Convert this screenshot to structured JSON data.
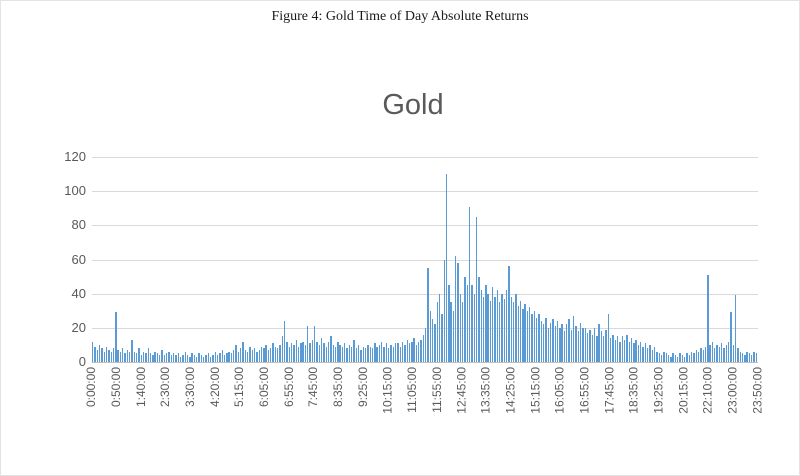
{
  "figure_caption": "Figure 4: Gold Time of Day Absolute Returns",
  "chart_data": {
    "type": "bar",
    "title": "Gold",
    "xlabel": "",
    "ylabel": "",
    "ylim": [
      0,
      120
    ],
    "y_ticks": [
      0,
      20,
      40,
      60,
      80,
      100,
      120
    ],
    "grid": true,
    "legend": false,
    "bar_color": "#5b9bd5",
    "gridline_color": "#d9d9d9",
    "axis_text_color": "#595959",
    "title_color": "#595959",
    "interval_minutes": 5,
    "x_tick_labels": [
      "0:00:00",
      "0:50:00",
      "1:40:00",
      "2:30:00",
      "3:30:00",
      "4:20:00",
      "5:15:00",
      "6:05:00",
      "6:55:00",
      "7:45:00",
      "8:35:00",
      "9:25:00",
      "10:15:00",
      "11:05:00",
      "11:55:00",
      "12:45:00",
      "13:35:00",
      "14:25:00",
      "15:15:00",
      "16:05:00",
      "16:55:00",
      "17:45:00",
      "18:35:00",
      "19:25:00",
      "20:15:00",
      "22:10:00",
      "23:00:00",
      "23:50:00"
    ],
    "values": [
      12,
      9,
      7,
      10,
      8,
      6,
      9,
      7,
      6,
      8,
      29,
      7,
      6,
      8,
      5,
      7,
      6,
      13,
      6,
      5,
      8,
      4,
      6,
      5,
      8,
      5,
      4,
      6,
      5,
      4,
      7,
      4,
      5,
      6,
      4,
      5,
      4,
      5,
      3,
      4,
      6,
      4,
      3,
      5,
      4,
      3,
      5,
      4,
      3,
      4,
      5,
      3,
      4,
      6,
      4,
      5,
      7,
      4,
      5,
      6,
      5,
      7,
      10,
      6,
      8,
      12,
      7,
      6,
      9,
      7,
      8,
      6,
      7,
      9,
      8,
      10,
      7,
      8,
      11,
      9,
      8,
      10,
      15,
      24,
      12,
      9,
      11,
      10,
      13,
      9,
      11,
      12,
      10,
      21,
      11,
      13,
      21,
      12,
      10,
      14,
      11,
      9,
      12,
      15,
      10,
      9,
      12,
      10,
      9,
      11,
      8,
      10,
      9,
      13,
      8,
      10,
      7,
      9,
      8,
      10,
      9,
      8,
      11,
      9,
      10,
      12,
      9,
      11,
      8,
      10,
      9,
      11,
      11,
      9,
      12,
      10,
      13,
      11,
      12,
      14,
      10,
      12,
      13,
      16,
      20,
      55,
      30,
      25,
      22,
      35,
      40,
      28,
      60,
      110,
      45,
      35,
      30,
      62,
      58,
      40,
      35,
      50,
      45,
      91,
      45,
      40,
      85,
      50,
      42,
      38,
      45,
      40,
      36,
      44,
      38,
      42,
      35,
      40,
      37,
      42,
      56,
      38,
      35,
      40,
      33,
      36,
      31,
      34,
      30,
      32,
      28,
      30,
      26,
      28,
      24,
      22,
      26,
      20,
      23,
      25,
      21,
      24,
      20,
      22,
      18,
      22,
      25,
      19,
      27,
      21,
      18,
      23,
      20,
      20,
      17,
      19,
      16,
      20,
      15,
      22,
      18,
      15,
      19,
      28,
      14,
      16,
      13,
      15,
      12,
      15,
      13,
      16,
      12,
      14,
      11,
      13,
      10,
      12,
      9,
      11,
      8,
      10,
      7,
      9,
      6,
      5,
      4,
      6,
      5,
      4,
      3,
      5,
      4,
      3,
      5,
      4,
      3,
      5,
      4,
      6,
      5,
      7,
      6,
      8,
      7,
      9,
      51,
      10,
      12,
      8,
      10,
      9,
      11,
      8,
      10,
      12,
      29,
      10,
      39,
      8,
      6,
      5,
      4,
      6,
      5,
      4,
      6,
      5
    ]
  }
}
